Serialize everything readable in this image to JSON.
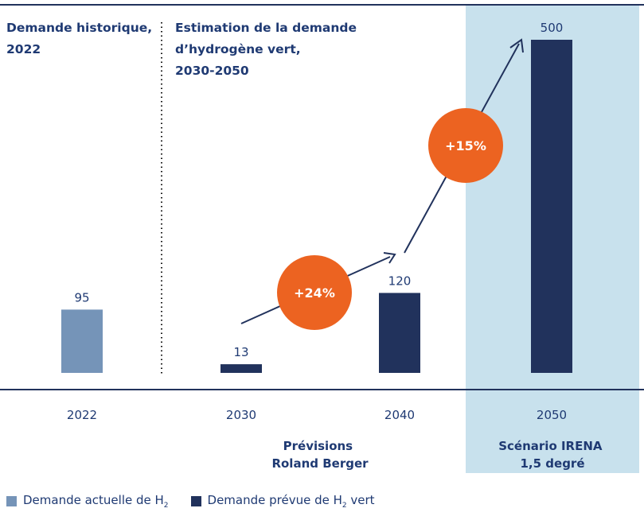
{
  "chart_data": {
    "type": "bar",
    "categories": [
      "2022",
      "2030",
      "2040",
      "2050"
    ],
    "values": [
      95,
      13,
      120,
      500
    ],
    "series_of_bar": [
      "actual",
      "forecast",
      "forecast",
      "forecast"
    ],
    "ylim": [
      0,
      500
    ],
    "grid": false,
    "section_titles": [
      [
        "Demande historique,",
        "2022"
      ],
      [
        "Estimation de la demande",
        "d’hydrogène vert,",
        "2030-2050"
      ]
    ],
    "group_labels": [
      [
        "Prévisions",
        "Roland Berger"
      ],
      [
        "Scénario IRENA",
        "1,5 degré"
      ]
    ],
    "growth_annotations": [
      "+24%",
      "+15%"
    ],
    "highlight_category": "2050",
    "legend": {
      "placement": "bottom-left",
      "actual": {
        "prefix": "Demande actuelle de H",
        "sub": "2",
        "suffix": ""
      },
      "forecast": {
        "prefix": "Demande prévue de H",
        "sub": "2",
        "suffix": " vert"
      }
    },
    "colors": {
      "actual": "#7594b8",
      "forecast": "#21325c",
      "highlight_bg": "#c8e1ed",
      "accent": "#ec6321",
      "text": "#1f3a73",
      "axis_line": "#21325c"
    }
  }
}
